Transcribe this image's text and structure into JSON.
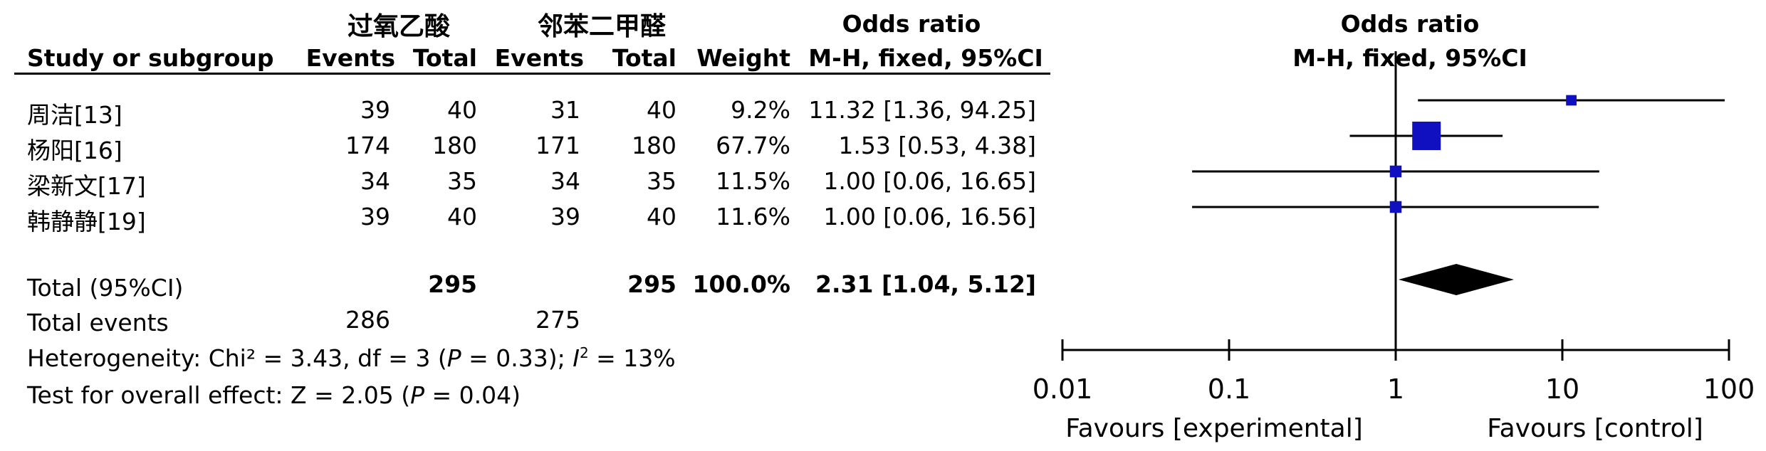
{
  "groups": {
    "experimental": "过氧乙酸",
    "control": "邻苯二甲醛"
  },
  "headers": {
    "study": "Study or subgroup",
    "events1": "Events",
    "total1": "Total",
    "events2": "Events",
    "total2": "Total",
    "weight": "Weight",
    "or_title": "Odds ratio",
    "or_method": "M-H, fixed, 95%CI",
    "plot_title": "Odds ratio",
    "plot_method": "M-H, fixed, 95%CI"
  },
  "studies": [
    {
      "name": "周洁[13]",
      "events1": "39",
      "total1": "40",
      "events2": "31",
      "total2": "40",
      "weight": "9.2%",
      "ci_text": "11.32 [1.36, 94.25]"
    },
    {
      "name": "杨阳[16]",
      "events1": "174",
      "total1": "180",
      "events2": "171",
      "total2": "180",
      "weight": "67.7%",
      "ci_text": "1.53 [0.53, 4.38]"
    },
    {
      "name": "梁新文[17]",
      "events1": "34",
      "total1": "35",
      "events2": "34",
      "total2": "35",
      "weight": "11.5%",
      "ci_text": "1.00 [0.06, 16.65]"
    },
    {
      "name": "韩静静[19]",
      "events1": "39",
      "total1": "40",
      "events2": "39",
      "total2": "40",
      "weight": "11.6%",
      "ci_text": "1.00 [0.06, 16.56]"
    }
  ],
  "total": {
    "label": "Total (95%CI)",
    "total1": "295",
    "total2": "295",
    "weight": "100.0%",
    "ci_text": "2.31 [1.04, 5.12]"
  },
  "total_events": {
    "label": "Total events",
    "events1": "286",
    "events2": "275"
  },
  "heterogeneity": {
    "prefix": "Heterogeneity: Chi² = 3.43, df = 3 (",
    "p": "P",
    "mid": " = 0.33); ",
    "i": "I",
    "sup": "2",
    "suffix": " = 13%"
  },
  "overall": {
    "prefix": "Test for overall effect: Z = 2.05 (",
    "p": "P",
    "suffix": " = 0.04)"
  },
  "axis": {
    "tick_labels": [
      "0.01",
      "0.1",
      "1",
      "10",
      "100"
    ],
    "favours_left": "Favours [experimental]",
    "favours_right": "Favours [control]"
  },
  "colors": {
    "study_marker": "#1010c0",
    "diamond": "#000000"
  },
  "chart_data": {
    "type": "forest",
    "scale": "log",
    "xlim": [
      0.01,
      100
    ],
    "ticks": [
      0.01,
      0.1,
      1,
      10,
      100
    ],
    "reference_line": 1,
    "studies": [
      {
        "name": "周洁[13]",
        "or": 11.32,
        "lower": 1.36,
        "upper": 94.25,
        "weight": 9.2
      },
      {
        "name": "杨阳[16]",
        "or": 1.53,
        "lower": 0.53,
        "upper": 4.38,
        "weight": 67.7
      },
      {
        "name": "梁新文[17]",
        "or": 1.0,
        "lower": 0.06,
        "upper": 16.65,
        "weight": 11.5
      },
      {
        "name": "韩静静[19]",
        "or": 1.0,
        "lower": 0.06,
        "upper": 16.56,
        "weight": 11.6
      }
    ],
    "pooled": {
      "or": 2.31,
      "lower": 1.04,
      "upper": 5.12
    }
  }
}
